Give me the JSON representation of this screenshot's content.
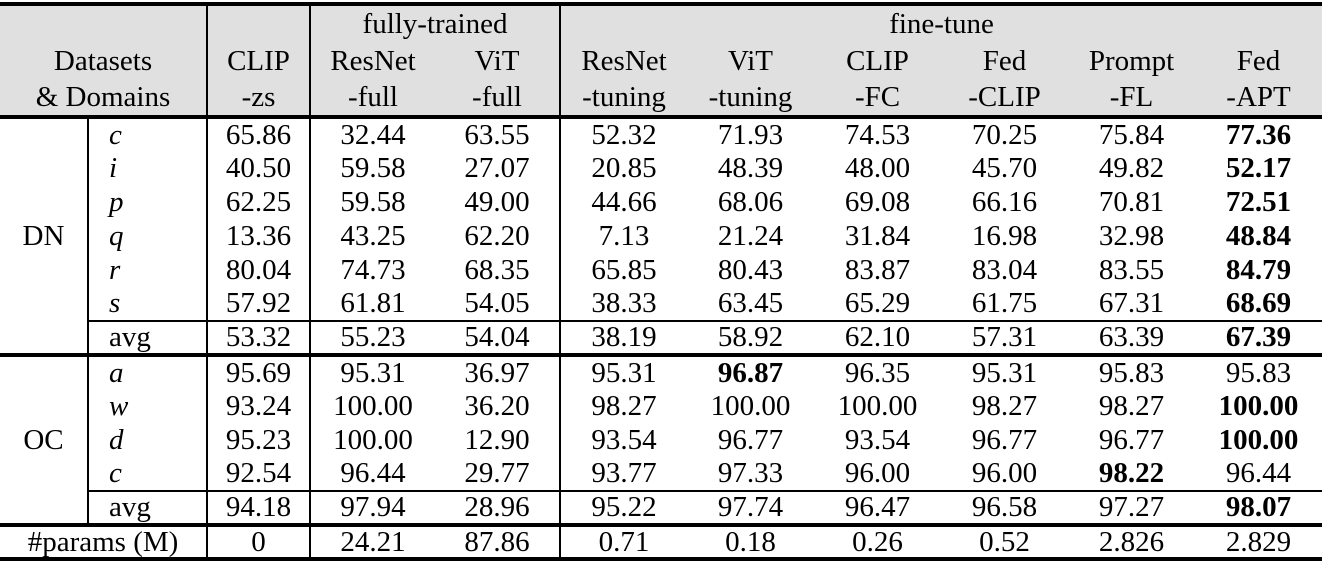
{
  "colors": {
    "header_bg": "#e0e0e0",
    "border": "#000000",
    "text": "#000000"
  },
  "table": {
    "header": {
      "groups": {
        "fully_trained": "fully-trained",
        "fine_tune": "fine-tune"
      },
      "row_label": {
        "line1": "Datasets",
        "line2": "& Domains"
      },
      "columns": [
        {
          "name": "CLIP",
          "suffix": "-zs"
        },
        {
          "name": "ResNet",
          "suffix": "-full"
        },
        {
          "name": "ViT",
          "suffix": "-full"
        },
        {
          "name": "ResNet",
          "suffix": "-tuning"
        },
        {
          "name": "ViT",
          "suffix": "-tuning"
        },
        {
          "name": "CLIP",
          "suffix": "-FC"
        },
        {
          "name": "Fed",
          "suffix": "-CLIP"
        },
        {
          "name": "Prompt",
          "suffix": "-FL"
        },
        {
          "name": "Fed",
          "suffix": "-APT"
        }
      ]
    },
    "sections": [
      {
        "dataset": "DN",
        "rows": [
          {
            "domain": "c",
            "italic": true,
            "values": [
              "65.86",
              "32.44",
              "63.55",
              "52.32",
              "71.93",
              "74.53",
              "70.25",
              "75.84",
              "77.36"
            ],
            "bold": [
              8
            ]
          },
          {
            "domain": "i",
            "italic": true,
            "values": [
              "40.50",
              "59.58",
              "27.07",
              "20.85",
              "48.39",
              "48.00",
              "45.70",
              "49.82",
              "52.17"
            ],
            "bold": [
              8
            ]
          },
          {
            "domain": "p",
            "italic": true,
            "values": [
              "62.25",
              "59.58",
              "49.00",
              "44.66",
              "68.06",
              "69.08",
              "66.16",
              "70.81",
              "72.51"
            ],
            "bold": [
              8
            ]
          },
          {
            "domain": "q",
            "italic": true,
            "values": [
              "13.36",
              "43.25",
              "62.20",
              "7.13",
              "21.24",
              "31.84",
              "16.98",
              "32.98",
              "48.84"
            ],
            "bold": [
              8
            ]
          },
          {
            "domain": "r",
            "italic": true,
            "values": [
              "80.04",
              "74.73",
              "68.35",
              "65.85",
              "80.43",
              "83.87",
              "83.04",
              "83.55",
              "84.79"
            ],
            "bold": [
              8
            ]
          },
          {
            "domain": "s",
            "italic": true,
            "values": [
              "57.92",
              "61.81",
              "54.05",
              "38.33",
              "63.45",
              "65.29",
              "61.75",
              "67.31",
              "68.69"
            ],
            "bold": [
              8
            ]
          },
          {
            "domain": "avg",
            "italic": false,
            "avg": true,
            "values": [
              "53.32",
              "55.23",
              "54.04",
              "38.19",
              "58.92",
              "62.10",
              "57.31",
              "63.39",
              "67.39"
            ],
            "bold": [
              8
            ]
          }
        ]
      },
      {
        "dataset": "OC",
        "rows": [
          {
            "domain": "a",
            "italic": true,
            "values": [
              "95.69",
              "95.31",
              "36.97",
              "95.31",
              "96.87",
              "96.35",
              "95.31",
              "95.83",
              "95.83"
            ],
            "bold": [
              4
            ]
          },
          {
            "domain": "w",
            "italic": true,
            "values": [
              "93.24",
              "100.00",
              "36.20",
              "98.27",
              "100.00",
              "100.00",
              "98.27",
              "98.27",
              "100.00"
            ],
            "bold": [
              8
            ]
          },
          {
            "domain": "d",
            "italic": true,
            "values": [
              "95.23",
              "100.00",
              "12.90",
              "93.54",
              "96.77",
              "93.54",
              "96.77",
              "96.77",
              "100.00"
            ],
            "bold": [
              8
            ]
          },
          {
            "domain": "c",
            "italic": true,
            "values": [
              "92.54",
              "96.44",
              "29.77",
              "93.77",
              "97.33",
              "96.00",
              "96.00",
              "98.22",
              "96.44"
            ],
            "bold": [
              7
            ]
          },
          {
            "domain": "avg",
            "italic": false,
            "avg": true,
            "values": [
              "94.18",
              "97.94",
              "28.96",
              "95.22",
              "97.74",
              "96.47",
              "96.58",
              "97.27",
              "98.07"
            ],
            "bold": [
              8
            ]
          }
        ]
      }
    ],
    "footer": {
      "label": "#params (M)",
      "values": [
        "0",
        "24.21",
        "87.86",
        "0.71",
        "0.18",
        "0.26",
        "0.52",
        "2.826",
        "2.829"
      ],
      "bold": []
    }
  }
}
